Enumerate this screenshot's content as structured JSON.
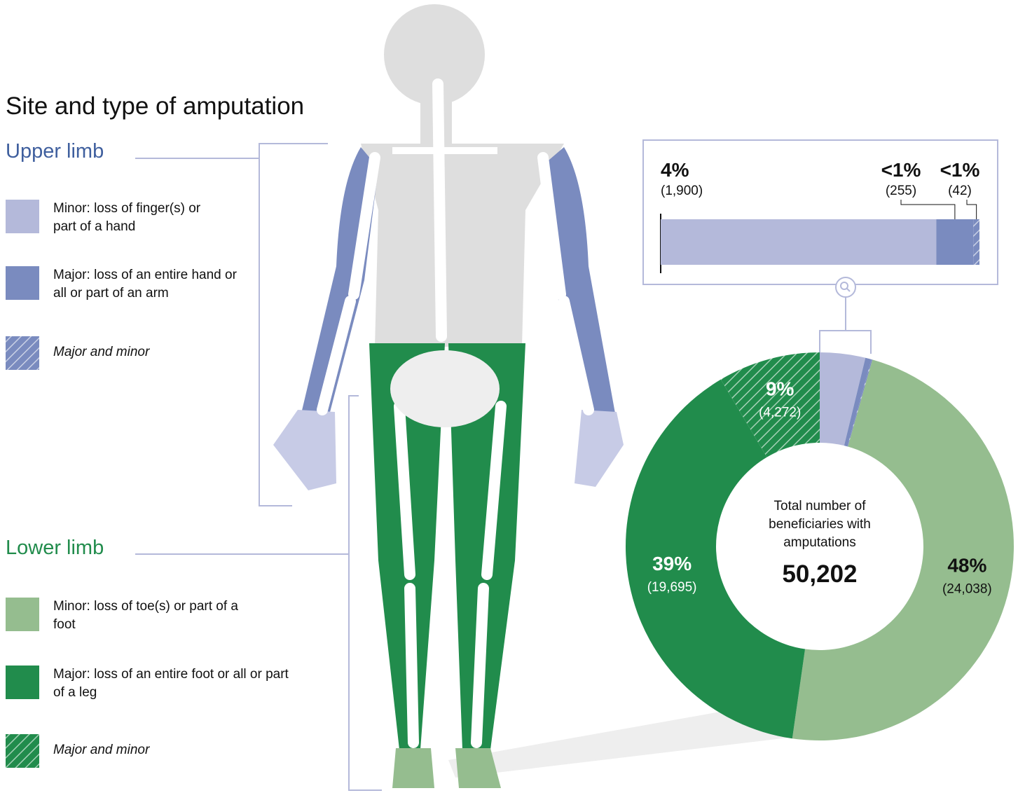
{
  "chart_data": {
    "type": "donut",
    "title": "Site and type of amputation",
    "center_text": "Total number of beneficiaries with amputations",
    "total": {
      "value": 50202,
      "label": "50,202"
    },
    "groups": [
      {
        "name": "Upper limb",
        "color": "#3f5f9e",
        "items": [
          {
            "name": "Minor: loss of finger(s) or part of a hand",
            "color": "#b4b9da",
            "hatch": false,
            "value": 1900,
            "value_label": "(1,900)",
            "percent_label": "4%"
          },
          {
            "name": "Major: loss of an entire hand or all or part of an arm",
            "color": "#7a8bbf",
            "hatch": false,
            "value": 255,
            "value_label": "(255)",
            "percent_label": "<1%"
          },
          {
            "name": "Major and minor",
            "color": "#7a8bbf",
            "hatch": true,
            "value": 42,
            "value_label": "(42)",
            "percent_label": "<1%"
          }
        ]
      },
      {
        "name": "Lower limb",
        "color": "#218c4c",
        "items": [
          {
            "name": "Minor: loss of toe(s) or part of a foot",
            "color": "#95bd8f",
            "hatch": false,
            "value": 24038,
            "value_label": "(24,038)",
            "percent_label": "48%"
          },
          {
            "name": "Major: loss of an entire foot or all or part of a leg",
            "color": "#218c4c",
            "hatch": false,
            "value": 19695,
            "value_label": "(19,695)",
            "percent_label": "39%"
          },
          {
            "name": "Major and minor",
            "color": "#218c4c",
            "hatch": true,
            "value": 4272,
            "value_label": "(4,272)",
            "percent_label": "9%"
          }
        ]
      }
    ]
  }
}
